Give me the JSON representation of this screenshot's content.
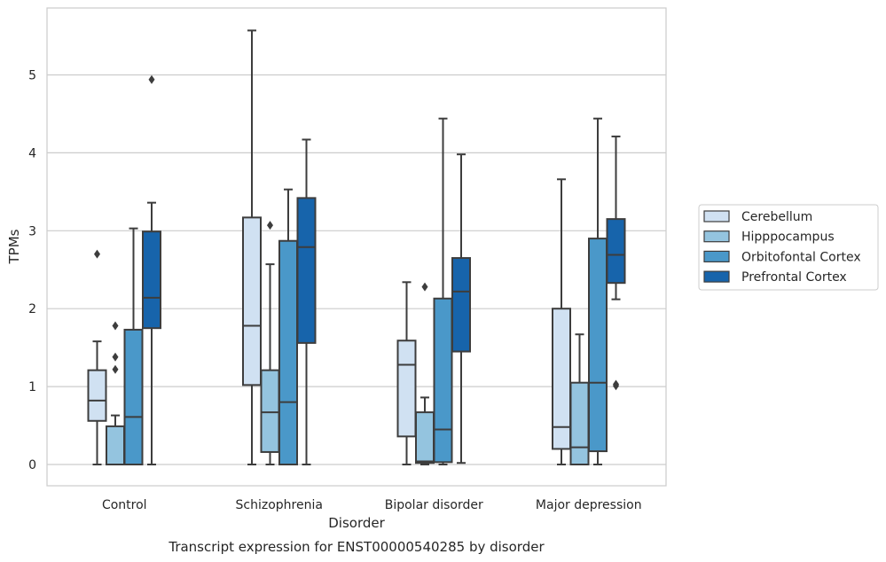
{
  "chart_data": {
    "type": "box",
    "title": "",
    "caption": "Transcript expression for ENST00000540285 by disorder",
    "xlabel": "Disorder",
    "ylabel": "TPMs",
    "ylim": [
      -0.27,
      5.88
    ],
    "yticks": [
      0,
      1,
      2,
      3,
      4,
      5
    ],
    "grid": "horizontal",
    "legend_position": "right",
    "categories": [
      "Control",
      "Schizophrenia",
      "Bipolar disorder",
      "Major depression"
    ],
    "series": [
      {
        "name": "Cerebellum",
        "color": "#d0e1f2",
        "boxes": [
          {
            "whislo": 0.0,
            "q1": 0.56,
            "med": 0.82,
            "q3": 1.21,
            "whishi": 1.58,
            "fliers": [
              2.7
            ]
          },
          {
            "whislo": 0.0,
            "q1": 1.02,
            "med": 1.78,
            "q3": 3.17,
            "whishi": 5.57,
            "fliers": []
          },
          {
            "whislo": 0.0,
            "q1": 0.36,
            "med": 1.28,
            "q3": 1.59,
            "whishi": 2.34,
            "fliers": []
          },
          {
            "whislo": 0.0,
            "q1": 0.2,
            "med": 0.48,
            "q3": 2.0,
            "whishi": 3.66,
            "fliers": []
          }
        ]
      },
      {
        "name": "Hipppocampus",
        "color": "#94c4df",
        "boxes": [
          {
            "whislo": 0.0,
            "q1": 0.0,
            "med": 0.0,
            "q3": 0.49,
            "whishi": 0.63,
            "fliers": [
              1.22,
              1.38,
              1.78
            ]
          },
          {
            "whislo": 0.0,
            "q1": 0.16,
            "med": 0.67,
            "q3": 1.21,
            "whishi": 2.57,
            "fliers": [
              3.07
            ]
          },
          {
            "whislo": 0.0,
            "q1": 0.02,
            "med": 0.04,
            "q3": 0.67,
            "whishi": 0.86,
            "fliers": [
              2.28
            ]
          },
          {
            "whislo": 0.0,
            "q1": 0.0,
            "med": 0.22,
            "q3": 1.05,
            "whishi": 1.67,
            "fliers": []
          }
        ]
      },
      {
        "name": "Orbitofontal Cortex",
        "color": "#4a98c9",
        "boxes": [
          {
            "whislo": 0.0,
            "q1": 0.0,
            "med": 0.61,
            "q3": 1.73,
            "whishi": 3.03,
            "fliers": []
          },
          {
            "whislo": 0.0,
            "q1": 0.0,
            "med": 0.8,
            "q3": 2.87,
            "whishi": 3.53,
            "fliers": []
          },
          {
            "whislo": 0.0,
            "q1": 0.03,
            "med": 0.45,
            "q3": 2.13,
            "whishi": 4.44,
            "fliers": []
          },
          {
            "whislo": 0.0,
            "q1": 0.17,
            "med": 1.05,
            "q3": 2.9,
            "whishi": 4.44,
            "fliers": []
          }
        ]
      },
      {
        "name": "Prefrontal Cortex",
        "color": "#1764ab",
        "boxes": [
          {
            "whislo": 0.0,
            "q1": 1.75,
            "med": 2.14,
            "q3": 2.99,
            "whishi": 3.36,
            "fliers": [
              4.94
            ]
          },
          {
            "whislo": 0.0,
            "q1": 1.56,
            "med": 2.79,
            "q3": 3.42,
            "whishi": 4.17,
            "fliers": []
          },
          {
            "whislo": 0.02,
            "q1": 1.45,
            "med": 2.22,
            "q3": 2.65,
            "whishi": 3.98,
            "fliers": []
          },
          {
            "whislo": 2.12,
            "q1": 2.33,
            "med": 2.69,
            "q3": 3.15,
            "whishi": 4.21,
            "fliers": [
              1.01,
              1.03
            ]
          }
        ]
      }
    ]
  }
}
